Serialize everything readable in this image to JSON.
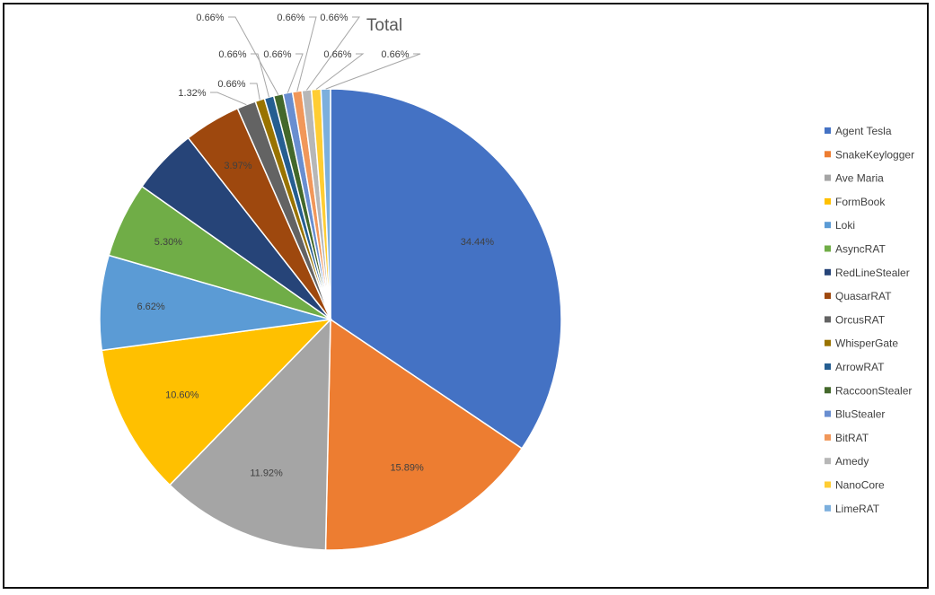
{
  "chart_data": {
    "type": "pie",
    "title": "Total",
    "legend_position": "right",
    "slices": [
      {
        "label": "Agent Tesla",
        "value": 34.44,
        "value_label": "34.44%",
        "color": "#4472C4"
      },
      {
        "label": "SnakeKeylogger",
        "value": 15.89,
        "value_label": "15.89%",
        "color": "#ED7D31"
      },
      {
        "label": "Ave Maria",
        "value": 11.92,
        "value_label": "11.92%",
        "color": "#A5A5A5"
      },
      {
        "label": "FormBook",
        "value": 10.6,
        "value_label": "10.60%",
        "color": "#FFC000"
      },
      {
        "label": "Loki",
        "value": 6.62,
        "value_label": "6.62%",
        "color": "#5B9BD5"
      },
      {
        "label": "AsyncRAT",
        "value": 5.3,
        "value_label": "5.30%",
        "color": "#70AD47"
      },
      {
        "label": "RedLineStealer",
        "value": 4.64,
        "value_label": "",
        "color": "#264478"
      },
      {
        "label": "QuasarRAT",
        "value": 3.97,
        "value_label": "3.97%",
        "color": "#9E480E"
      },
      {
        "label": "OrcusRAT",
        "value": 1.32,
        "value_label": "1.32%",
        "color": "#636363"
      },
      {
        "label": "WhisperGate",
        "value": 0.66,
        "value_label": "0.66%",
        "color": "#997300"
      },
      {
        "label": "ArrowRAT",
        "value": 0.66,
        "value_label": "0.66%",
        "color": "#255E91"
      },
      {
        "label": "RaccoonStealer",
        "value": 0.66,
        "value_label": "0.66%",
        "color": "#43682B"
      },
      {
        "label": "BluStealer",
        "value": 0.66,
        "value_label": "0.66%",
        "color": "#698ED0"
      },
      {
        "label": "BitRAT",
        "value": 0.66,
        "value_label": "0.66%",
        "color": "#F1975A"
      },
      {
        "label": "Amedy",
        "value": 0.66,
        "value_label": "0.66%",
        "color": "#B7B7B7"
      },
      {
        "label": "NanoCore",
        "value": 0.66,
        "value_label": "0.66%",
        "color": "#FFCD33"
      },
      {
        "label": "LimeRAT",
        "value": 0.66,
        "value_label": "0.66%",
        "color": "#7CAFDD"
      }
    ]
  }
}
